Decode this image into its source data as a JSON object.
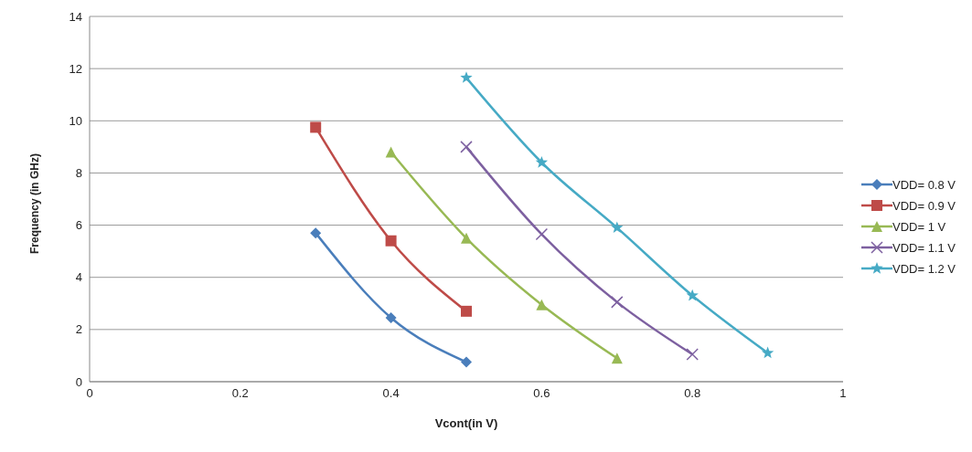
{
  "chart_data": {
    "type": "line",
    "xlabel": "Vcont(in V)",
    "ylabel": "Frequency (in GHz)",
    "xlim": [
      0,
      1
    ],
    "xticks": [
      0,
      0.2,
      0.4,
      0.6,
      0.8,
      1
    ],
    "ylim": [
      0,
      14
    ],
    "yticks": [
      0,
      2,
      4,
      6,
      8,
      10,
      12,
      14
    ],
    "grid": "y",
    "legend": "right",
    "series": [
      {
        "name": "VDD= 0.8 V",
        "color": "#4a7ebb",
        "marker": "diamond",
        "x": [
          0.3,
          0.4,
          0.5
        ],
        "values": [
          5.7,
          2.45,
          0.75
        ]
      },
      {
        "name": "VDD= 0.9 V",
        "color": "#be4b48",
        "marker": "square",
        "x": [
          0.3,
          0.4,
          0.5
        ],
        "values": [
          9.75,
          5.4,
          2.7
        ]
      },
      {
        "name": "VDD= 1 V",
        "color": "#98b954",
        "marker": "triangle",
        "x": [
          0.4,
          0.5,
          0.6,
          0.7
        ],
        "values": [
          8.8,
          5.5,
          2.95,
          0.9
        ]
      },
      {
        "name": "VDD= 1.1 V",
        "color": "#7d60a0",
        "marker": "cross",
        "x": [
          0.5,
          0.6,
          0.7,
          0.8
        ],
        "values": [
          9.0,
          5.65,
          3.05,
          1.05
        ]
      },
      {
        "name": "VDD= 1.2 V",
        "color": "#46aac5",
        "marker": "star",
        "x": [
          0.5,
          0.6,
          0.7,
          0.8,
          0.9
        ],
        "values": [
          11.65,
          8.4,
          5.9,
          3.3,
          1.1
        ]
      }
    ]
  }
}
